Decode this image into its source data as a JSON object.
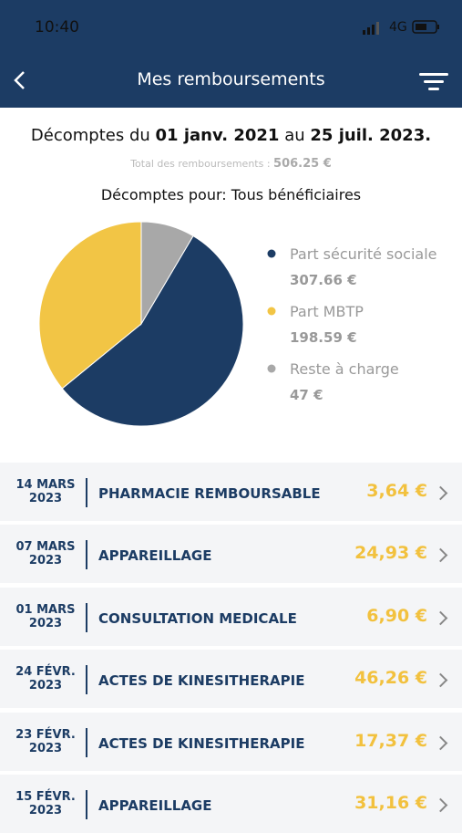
{
  "status_bar": {
    "time": "10:40",
    "network": "4G"
  },
  "header": {
    "title": "Mes remboursements"
  },
  "summary": {
    "period_prefix": "Décomptes du",
    "period_start": "01 janv. 2021",
    "period_middle": "au",
    "period_end": "25 juil. 2023.",
    "total_label": "Total des remboursements :",
    "total_value": "506.25 €",
    "beneficiaries": "Décomptes pour: Tous bénéficiaires"
  },
  "chart_data": {
    "type": "pie",
    "categories": [
      "Part sécurité sociale",
      "Part MBTP",
      "Reste à charge"
    ],
    "values": [
      307.66,
      198.59,
      47
    ],
    "value_labels": [
      "307.66 €",
      "198.59 €",
      "47 €"
    ],
    "colors": [
      "#1c3c64",
      "#f2c545",
      "#a8a8a8"
    ]
  },
  "list": [
    {
      "day": "14 MARS",
      "year": "2023",
      "label": "PHARMACIE REMBOURSABLE",
      "amount": "3,64 €"
    },
    {
      "day": "07 MARS",
      "year": "2023",
      "label": "APPAREILLAGE",
      "amount": "24,93 €"
    },
    {
      "day": "01 MARS",
      "year": "2023",
      "label": "CONSULTATION MEDICALE",
      "amount": "6,90 €"
    },
    {
      "day": "24 FÉVR.",
      "year": "2023",
      "label": "ACTES DE KINESITHERAPIE",
      "amount": "46,26 €"
    },
    {
      "day": "23 FÉVR.",
      "year": "2023",
      "label": "ACTES DE KINESITHERAPIE",
      "amount": "17,37 €"
    },
    {
      "day": "15 FÉVR.",
      "year": "2023",
      "label": "APPAREILLAGE",
      "amount": "31,16 €"
    }
  ]
}
